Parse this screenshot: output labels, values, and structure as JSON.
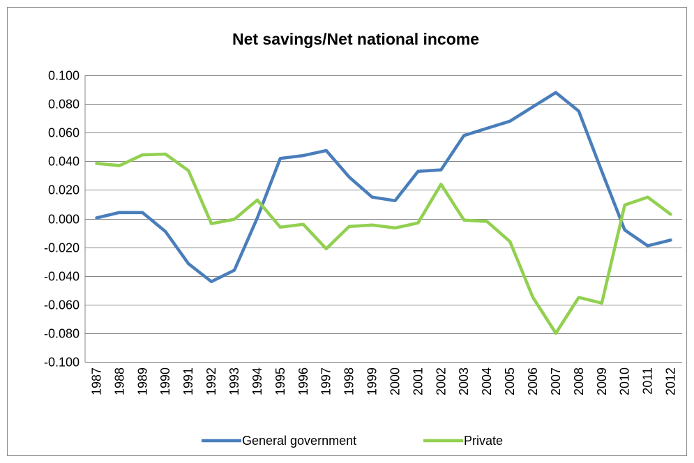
{
  "chart_data": {
    "type": "line",
    "title": "Net savings/Net national income",
    "xlabel": "",
    "ylabel": "",
    "ylim": [
      -0.1,
      0.1
    ],
    "y_ticks": [
      "0.100",
      "0.080",
      "0.060",
      "0.040",
      "0.020",
      "0.000",
      "-0.020",
      "-0.040",
      "-0.060",
      "-0.080",
      "-0.100"
    ],
    "y_tick_values": [
      0.1,
      0.08,
      0.06,
      0.04,
      0.02,
      0,
      -0.02,
      -0.04,
      -0.06,
      -0.08,
      -0.1
    ],
    "categories": [
      "1987",
      "1988",
      "1989",
      "1990",
      "1991",
      "1992",
      "1993",
      "1994",
      "1995",
      "1996",
      "1997",
      "1998",
      "1999",
      "2000",
      "2001",
      "2002",
      "2003",
      "2004",
      "2005",
      "2006",
      "2007",
      "2008",
      "2009",
      "2010",
      "2011",
      "2012"
    ],
    "grid": "horizontal",
    "legend_position": "bottom",
    "series": [
      {
        "name": "General government",
        "color": "#4a7ebb",
        "values": [
          0.0005,
          0.0043,
          0.0042,
          -0.009,
          -0.0315,
          -0.044,
          -0.036,
          0.0005,
          0.042,
          0.044,
          0.0475,
          0.029,
          0.015,
          0.0125,
          0.033,
          0.034,
          0.058,
          0.063,
          0.068,
          0.078,
          0.088,
          0.075,
          0.033,
          -0.008,
          -0.019,
          -0.015
        ]
      },
      {
        "name": "Private",
        "color": "#92d050",
        "values": [
          0.0385,
          0.037,
          0.0445,
          0.045,
          0.0335,
          -0.0035,
          -0.0005,
          0.013,
          -0.006,
          -0.004,
          -0.021,
          -0.0055,
          -0.0045,
          -0.0065,
          -0.003,
          0.024,
          -0.001,
          -0.002,
          -0.016,
          -0.055,
          -0.08,
          -0.055,
          -0.059,
          0.0095,
          0.015,
          0.003
        ]
      }
    ]
  }
}
